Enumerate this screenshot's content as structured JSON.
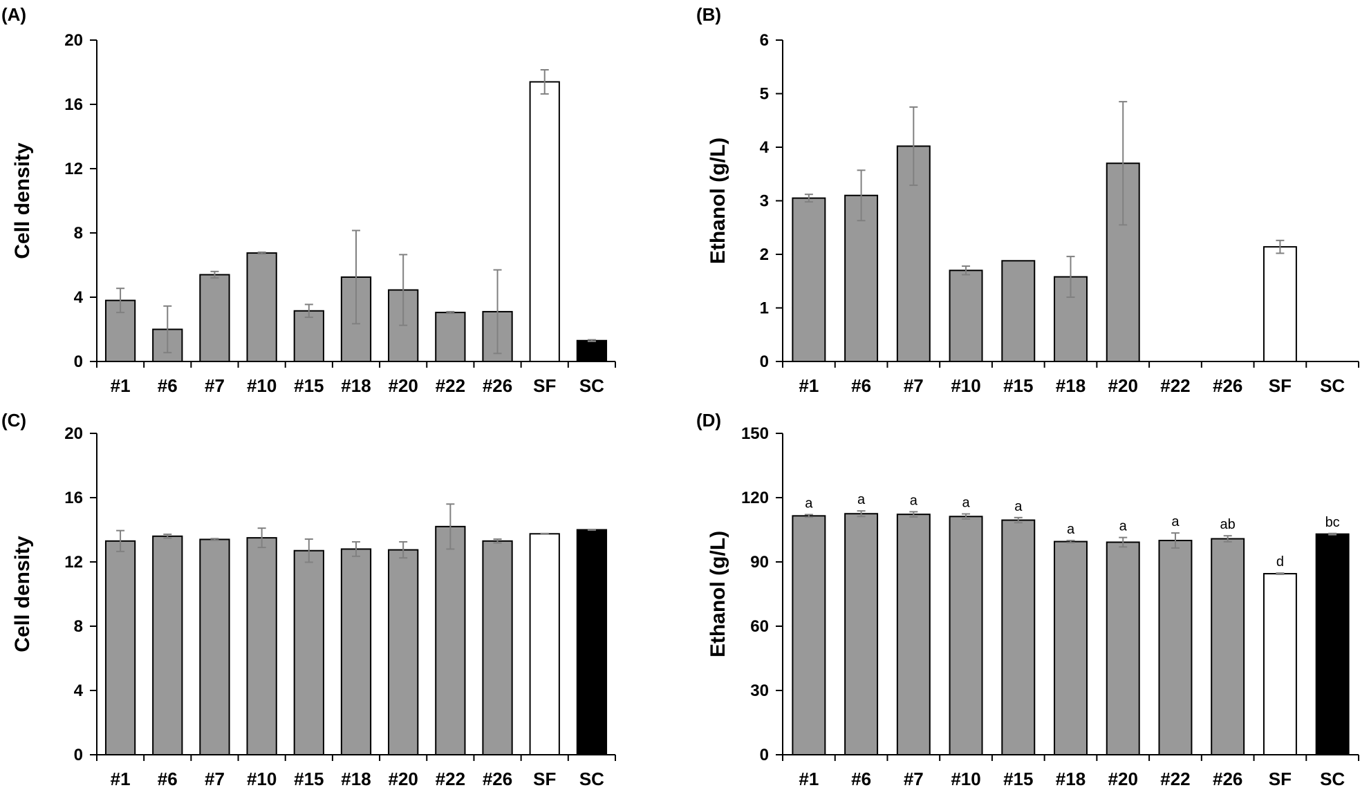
{
  "chart_data": [
    {
      "panel": "(A)",
      "type": "bar",
      "categories": [
        "#1",
        "#6",
        "#7",
        "#10",
        "#15",
        "#18",
        "#20",
        "#22",
        "#26",
        "SF",
        "SC"
      ],
      "values": [
        3.8,
        2.0,
        5.4,
        6.75,
        3.15,
        5.25,
        4.45,
        3.05,
        3.1,
        17.4,
        1.3
      ],
      "errors": [
        0.75,
        1.45,
        0.2,
        0.05,
        0.4,
        2.9,
        2.2,
        0.05,
        2.6,
        0.75,
        0.05
      ],
      "bar_colors": [
        "#999999",
        "#999999",
        "#999999",
        "#999999",
        "#999999",
        "#999999",
        "#999999",
        "#999999",
        "#999999",
        "#ffffff",
        "#000000"
      ],
      "ylabel": "Cell density",
      "ylim": [
        0,
        20
      ],
      "yticks": [
        "0",
        "4",
        "8",
        "12",
        "16",
        "20"
      ]
    },
    {
      "panel": "(B)",
      "type": "bar",
      "categories": [
        "#1",
        "#6",
        "#7",
        "#10",
        "#15",
        "#18",
        "#20",
        "#22",
        "#26",
        "SF",
        "SC"
      ],
      "values": [
        3.05,
        3.1,
        4.02,
        1.7,
        1.88,
        1.58,
        3.7,
        0,
        0,
        2.14,
        0
      ],
      "errors": [
        0.07,
        0.47,
        0.73,
        0.08,
        0,
        0.38,
        1.15,
        0,
        0,
        0.12,
        0
      ],
      "bar_colors": [
        "#999999",
        "#999999",
        "#999999",
        "#999999",
        "#999999",
        "#999999",
        "#999999",
        "#999999",
        "#999999",
        "#ffffff",
        "#000000"
      ],
      "ylabel": "Ethanol (g/L)",
      "ylim": [
        0,
        6
      ],
      "yticks": [
        "0",
        "1",
        "2",
        "3",
        "4",
        "5",
        "6"
      ]
    },
    {
      "panel": "(C)",
      "type": "bar",
      "categories": [
        "#1",
        "#6",
        "#7",
        "#10",
        "#15",
        "#18",
        "#20",
        "#22",
        "#26",
        "SF",
        "SC"
      ],
      "values": [
        13.3,
        13.6,
        13.4,
        13.5,
        12.7,
        12.8,
        12.75,
        14.2,
        13.3,
        13.75,
        14.0
      ],
      "errors": [
        0.65,
        0.12,
        0.05,
        0.6,
        0.72,
        0.45,
        0.5,
        1.4,
        0.12,
        0.02,
        0.02
      ],
      "bar_colors": [
        "#999999",
        "#999999",
        "#999999",
        "#999999",
        "#999999",
        "#999999",
        "#999999",
        "#999999",
        "#999999",
        "#ffffff",
        "#000000"
      ],
      "ylabel": "Cell density",
      "ylim": [
        0,
        20
      ],
      "yticks": [
        "0",
        "4",
        "8",
        "12",
        "16",
        "20"
      ]
    },
    {
      "panel": "(D)",
      "type": "bar",
      "categories": [
        "#1",
        "#6",
        "#7",
        "#10",
        "#15",
        "#18",
        "#20",
        "#22",
        "#26",
        "SF",
        "SC"
      ],
      "values": [
        111.5,
        112.5,
        112.2,
        111.2,
        109.5,
        99.5,
        99.2,
        100,
        100.8,
        84.5,
        103
      ],
      "errors": [
        0.6,
        1.3,
        1.2,
        1.2,
        1.2,
        0.5,
        2.2,
        3.5,
        1.4,
        0.3,
        0.3
      ],
      "bar_colors": [
        "#999999",
        "#999999",
        "#999999",
        "#999999",
        "#999999",
        "#999999",
        "#999999",
        "#999999",
        "#999999",
        "#ffffff",
        "#000000"
      ],
      "annotations": [
        "a",
        "a",
        "a",
        "a",
        "a",
        "a",
        "a",
        "a",
        "ab",
        "d",
        "bc"
      ],
      "ylabel": "Ethanol (g/L)",
      "ylim": [
        0,
        150
      ],
      "yticks": [
        "0",
        "30",
        "60",
        "90",
        "120",
        "150"
      ]
    }
  ]
}
